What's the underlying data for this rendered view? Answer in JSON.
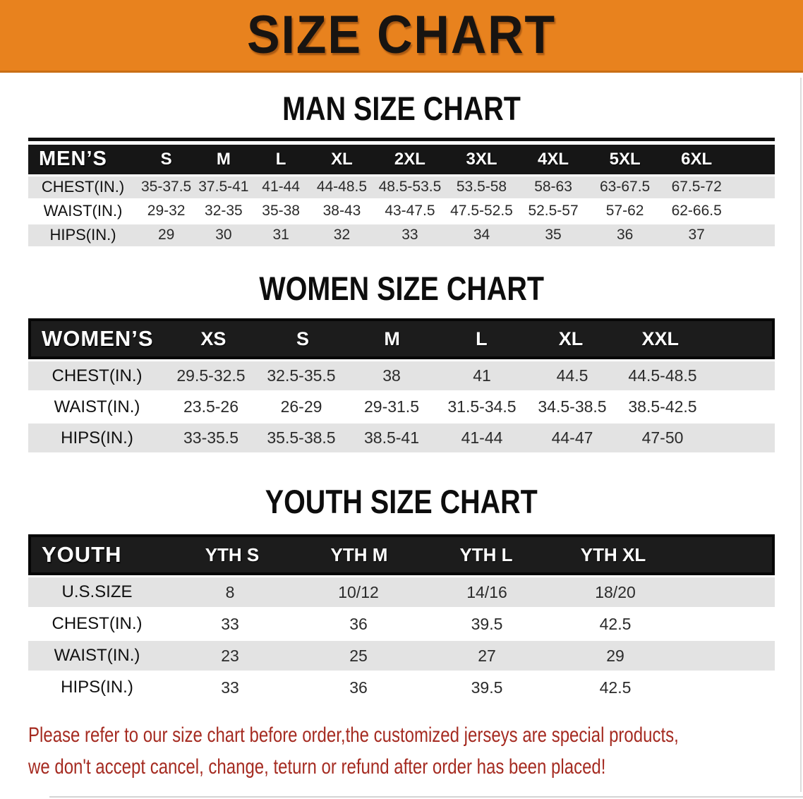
{
  "banner": {
    "title": "SIZE CHART"
  },
  "colors": {
    "banner_bg": "#E8821E",
    "header_bg": "#161616",
    "row_alt_bg": "#E3E3E3",
    "disclaimer_red": "#A52B21"
  },
  "sections": {
    "men": {
      "title": "MAN SIZE CHART",
      "table": {
        "label": "MEN’S",
        "sizes": [
          "S",
          "M",
          "L",
          "XL",
          "2XL",
          "3XL",
          "4XL",
          "5XL",
          "6XL"
        ],
        "rows": [
          {
            "label": "CHEST(IN.)",
            "values": [
              "35-37.5",
              "37.5-41",
              "41-44",
              "44-48.5",
              "48.5-53.5",
              "53.5-58",
              "58-63",
              "63-67.5",
              "67.5-72"
            ]
          },
          {
            "label": "WAIST(IN.)",
            "values": [
              "29-32",
              "32-35",
              "35-38",
              "38-43",
              "43-47.5",
              "47.5-52.5",
              "52.5-57",
              "57-62",
              "62-66.5"
            ]
          },
          {
            "label": "HIPS(IN.)",
            "values": [
              "29",
              "30",
              "31",
              "32",
              "33",
              "34",
              "35",
              "36",
              "37"
            ]
          }
        ]
      }
    },
    "women": {
      "title": "WOMEN SIZE CHART",
      "table": {
        "label": "WOMEN’S",
        "sizes": [
          "XS",
          "S",
          "M",
          "L",
          "XL",
          "XXL"
        ],
        "rows": [
          {
            "label": "CHEST(IN.)",
            "values": [
              "29.5-32.5",
              "32.5-35.5",
              "38",
              "41",
              "44.5",
              "44.5-48.5"
            ]
          },
          {
            "label": "WAIST(IN.)",
            "values": [
              "23.5-26",
              "26-29",
              "29-31.5",
              "31.5-34.5",
              "34.5-38.5",
              "38.5-42.5"
            ]
          },
          {
            "label": "HIPS(IN.)",
            "values": [
              "33-35.5",
              "35.5-38.5",
              "38.5-41",
              "41-44",
              "44-47",
              "47-50"
            ]
          }
        ]
      }
    },
    "youth": {
      "title": "YOUTH SIZE CHART",
      "table": {
        "label": "YOUTH",
        "sizes": [
          "YTH S",
          "YTH M",
          "YTH L",
          "YTH XL"
        ],
        "rows": [
          {
            "label": "U.S.SIZE",
            "values": [
              "8",
              "10/12",
              "14/16",
              "18/20"
            ]
          },
          {
            "label": "CHEST(IN.)",
            "values": [
              "33",
              "36",
              "39.5",
              "42.5"
            ]
          },
          {
            "label": "WAIST(IN.)",
            "values": [
              "23",
              "25",
              "27",
              "29"
            ]
          },
          {
            "label": "HIPS(IN.)",
            "values": [
              "33",
              "36",
              "39.5",
              "42.5"
            ]
          }
        ]
      }
    }
  },
  "disclaimer": {
    "line1": "Please refer to our size chart before order,the customized jerseys are special products,",
    "line2": "we don't accept cancel, change, teturn or refund after order has been placed!"
  }
}
